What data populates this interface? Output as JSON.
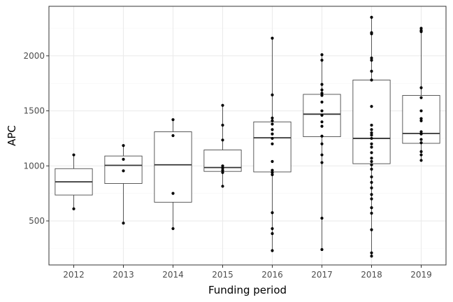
{
  "chart_data": {
    "type": "boxplot",
    "title": "",
    "xlabel": "Funding period",
    "ylabel": "APC",
    "ylim": [
      100,
      2450
    ],
    "y_ticks": [
      500,
      1000,
      1500,
      2000
    ],
    "grid": true,
    "categories": [
      "2012",
      "2013",
      "2014",
      "2015",
      "2016",
      "2017",
      "2018",
      "2019"
    ],
    "boxes": [
      {
        "category": "2012",
        "min": 610,
        "q1": 735,
        "median": 855,
        "q3": 975,
        "max": 1100
      },
      {
        "category": "2013",
        "min": 480,
        "q1": 840,
        "median": 1005,
        "q3": 1090,
        "max": 1185
      },
      {
        "category": "2014",
        "min": 430,
        "q1": 670,
        "median": 1010,
        "q3": 1310,
        "max": 1420
      },
      {
        "category": "2015",
        "min": 815,
        "q1": 950,
        "median": 985,
        "q3": 1145,
        "max": 1550
      },
      {
        "category": "2016",
        "min": 230,
        "q1": 945,
        "median": 1255,
        "q3": 1400,
        "max": 2160
      },
      {
        "category": "2017",
        "min": 240,
        "q1": 1265,
        "median": 1470,
        "q3": 1650,
        "max": 2010
      },
      {
        "category": "2018",
        "min": 180,
        "q1": 1020,
        "median": 1250,
        "q3": 1780,
        "max": 2350
      },
      {
        "category": "2019",
        "min": 1050,
        "q1": 1205,
        "median": 1295,
        "q3": 1640,
        "max": 2250
      }
    ],
    "points": [
      {
        "category": "2012",
        "values": [
          1100,
          610
        ]
      },
      {
        "category": "2013",
        "values": [
          1185,
          1060,
          955,
          480
        ]
      },
      {
        "category": "2014",
        "values": [
          1420,
          1275,
          750,
          430
        ]
      },
      {
        "category": "2015",
        "values": [
          1550,
          1370,
          1235,
          1000,
          980,
          960,
          940,
          815
        ]
      },
      {
        "category": "2016",
        "values": [
          2160,
          1645,
          1435,
          1410,
          1380,
          1330,
          1290,
          1250,
          1200,
          1040,
          960,
          940,
          920,
          575,
          430,
          385,
          230
        ]
      },
      {
        "category": "2017",
        "values": [
          2010,
          1960,
          1740,
          1690,
          1660,
          1640,
          1580,
          1500,
          1460,
          1400,
          1360,
          1270,
          1200,
          1100,
          1030,
          525,
          240
        ]
      },
      {
        "category": "2018",
        "values": [
          2350,
          2210,
          2200,
          1980,
          1960,
          1860,
          1780,
          1540,
          1370,
          1330,
          1300,
          1280,
          1250,
          1200,
          1170,
          1120,
          1070,
          1040,
          1010,
          970,
          900,
          850,
          800,
          740,
          700,
          620,
          570,
          420,
          210,
          180
        ]
      },
      {
        "category": "2019",
        "values": [
          2250,
          2230,
          2220,
          1710,
          1620,
          1500,
          1430,
          1410,
          1310,
          1290,
          1240,
          1210,
          1130,
          1100,
          1050
        ]
      }
    ]
  },
  "colors": {
    "panel_border": "#333333",
    "grid_major": "#ebebeb",
    "grid_minor": "#f5f5f5",
    "box_line": "#333333",
    "point": "#000000"
  }
}
